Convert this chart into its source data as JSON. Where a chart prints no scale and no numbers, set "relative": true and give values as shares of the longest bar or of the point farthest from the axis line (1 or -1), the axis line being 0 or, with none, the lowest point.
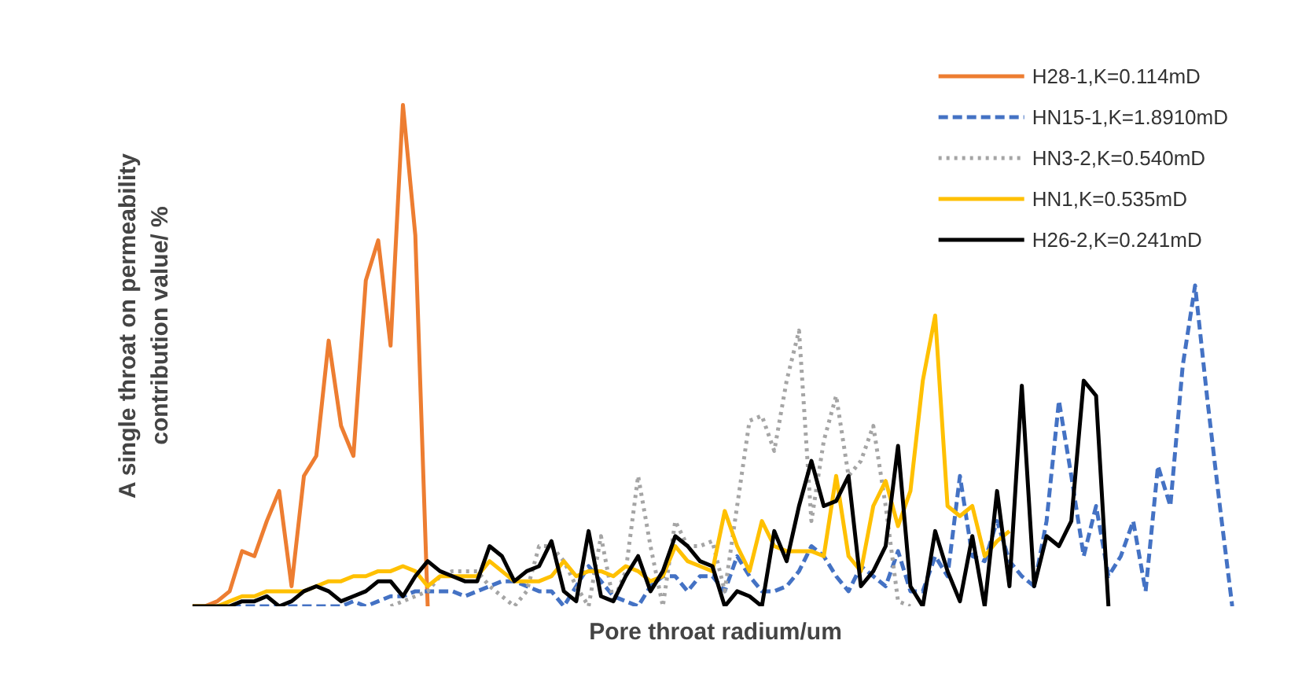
{
  "chart_data": {
    "type": "line",
    "relative": true,
    "xlabel": "Pore throat radium/um",
    "ylabel": "A single throat on permeability\ncontribution value/ %",
    "legend": "top right",
    "grid": false,
    "categories": [
      null,
      null,
      null,
      null,
      null,
      null,
      null,
      null,
      null,
      null,
      null,
      null,
      null,
      null,
      null,
      null,
      null,
      null,
      null,
      null,
      null,
      null,
      null,
      null,
      null,
      null,
      null,
      null,
      null,
      null,
      null,
      null,
      null,
      null,
      null,
      null,
      null,
      null,
      null,
      null,
      null,
      null,
      null,
      null,
      null,
      null,
      null,
      null,
      null,
      null,
      null,
      null,
      null,
      null,
      null,
      null,
      null,
      null,
      null,
      null,
      null,
      null,
      null,
      null,
      null,
      null,
      null,
      null,
      null,
      null,
      null,
      null,
      null,
      null,
      null,
      null,
      null,
      null,
      null,
      null,
      null,
      null,
      null,
      null,
      null
    ],
    "series": [
      {
        "name": "H28-1,K=0.114mD",
        "color": "#ed7d31",
        "line_style": "solid",
        "values": [
          0,
          0,
          0.01,
          0.03,
          0.11,
          0.1,
          0.17,
          0.23,
          0.04,
          0.26,
          0.3,
          0.53,
          0.36,
          0.3,
          0.65,
          0.73,
          0.52,
          1.0,
          0.74,
          0,
          null,
          null,
          null,
          null,
          null,
          null,
          null,
          null,
          null,
          null,
          null,
          null,
          null,
          null,
          null,
          null,
          null,
          null,
          null,
          null,
          null,
          null,
          null,
          null,
          null,
          null,
          null,
          null,
          null,
          null,
          null,
          null,
          null,
          null,
          null,
          null,
          null,
          null,
          null,
          null,
          null,
          null,
          null,
          null,
          null,
          null,
          null,
          null,
          null,
          null,
          null,
          null,
          null,
          null,
          null,
          null,
          null,
          null,
          null,
          null,
          null,
          null,
          null,
          null,
          null
        ]
      },
      {
        "name": "HN15-1,K=1.8910mD",
        "color": "#4472c4",
        "line_style": "dashed",
        "values": [
          null,
          null,
          0,
          0,
          0,
          0,
          0,
          0,
          0,
          0,
          0,
          0,
          0,
          0.01,
          0.0,
          0.01,
          0.02,
          0.02,
          0.03,
          0.03,
          0.03,
          0.03,
          0.02,
          0.03,
          0.04,
          0.05,
          0.05,
          0.04,
          0.03,
          0.03,
          0.0,
          0.04,
          0.08,
          0.05,
          0.02,
          0.01,
          0.0,
          0.04,
          0.06,
          0.06,
          0.03,
          0.06,
          0.06,
          0.03,
          0.1,
          0.06,
          0.03,
          0.03,
          0.04,
          0.07,
          0.12,
          0.1,
          0.06,
          0.03,
          0.08,
          0.06,
          0.04,
          0.11,
          0.03,
          0.03,
          0.1,
          0.06,
          0.26,
          0.1,
          0.09,
          0.17,
          0.09,
          0.06,
          0.04,
          0.17,
          0.41,
          0.26,
          0.1,
          0.2,
          0.06,
          0.1,
          0.17,
          0.03,
          0.28,
          0.2,
          0.48,
          0.64,
          0.41,
          0.2,
          0
        ]
      },
      {
        "name": "HN3-2,K=0.540mD",
        "color": "#a5a5a5",
        "line_style": "dotted",
        "values": [
          null,
          null,
          null,
          null,
          null,
          null,
          null,
          null,
          null,
          null,
          null,
          null,
          null,
          null,
          null,
          null,
          0.0,
          0.01,
          0.02,
          0.03,
          0.06,
          0.07,
          0.07,
          0.07,
          0.04,
          0.02,
          0,
          0.03,
          0.12,
          0.12,
          0.09,
          0.04,
          0.0,
          0.14,
          0.01,
          0.07,
          0.26,
          0.12,
          0.0,
          0.17,
          0.12,
          0.12,
          0.13,
          0.03,
          0.2,
          0.37,
          0.38,
          0.31,
          0.45,
          0.55,
          0.17,
          0.33,
          0.42,
          0.26,
          0.29,
          0.36,
          0.2,
          0.01,
          0,
          null,
          null,
          null,
          null,
          null,
          null,
          null,
          null,
          null,
          null,
          null,
          null,
          null,
          null,
          null,
          null,
          null,
          null,
          null,
          null,
          null,
          null,
          null,
          null,
          null,
          null
        ]
      },
      {
        "name": "HN1,K=0.535mD",
        "color": "#ffc000",
        "line_style": "solid",
        "values": [
          0,
          0,
          0.0,
          0.01,
          0.02,
          0.02,
          0.03,
          0.03,
          0.03,
          0.03,
          0.04,
          0.05,
          0.05,
          0.06,
          0.06,
          0.07,
          0.07,
          0.08,
          0.07,
          0.04,
          0.06,
          0.06,
          0.06,
          0.06,
          0.09,
          0.07,
          0.05,
          0.05,
          0.05,
          0.06,
          0.09,
          0.06,
          0.07,
          0.07,
          0.06,
          0.08,
          0.07,
          0.05,
          0.06,
          0.12,
          0.09,
          0.08,
          0.07,
          0.19,
          0.12,
          0.07,
          0.17,
          0.12,
          0.11,
          0.11,
          0.11,
          0.1,
          0.26,
          0.1,
          0.07,
          0.2,
          0.25,
          0.16,
          0.23,
          0.45,
          0.58,
          0.2,
          0.18,
          0.2,
          0.1,
          0.13,
          0.15,
          null,
          null,
          null,
          null,
          null,
          null,
          null,
          null,
          null,
          null,
          null,
          null,
          null,
          null,
          null,
          null,
          null,
          null
        ]
      },
      {
        "name": "H26-2,K=0.241mD",
        "color": "#000000",
        "line_style": "solid",
        "values": [
          0,
          0,
          0,
          0.0,
          0.01,
          0.01,
          0.02,
          0.0,
          0.01,
          0.03,
          0.04,
          0.03,
          0.01,
          0.02,
          0.03,
          0.05,
          0.05,
          0.02,
          0.06,
          0.09,
          0.07,
          0.06,
          0.05,
          0.05,
          0.12,
          0.1,
          0.05,
          0.07,
          0.08,
          0.13,
          0.03,
          0.01,
          0.15,
          0.02,
          0.01,
          0.06,
          0.1,
          0.03,
          0.07,
          0.14,
          0.12,
          0.09,
          0.08,
          0.0,
          0.03,
          0.02,
          0,
          0.15,
          0.09,
          0.2,
          0.29,
          0.2,
          0.21,
          0.26,
          0.04,
          0.07,
          0.12,
          0.32,
          0.04,
          0,
          0.15,
          0.07,
          0.01,
          0.14,
          0,
          0.23,
          0.04,
          0.44,
          0.04,
          0.14,
          0.12,
          0.17,
          0.45,
          0.42,
          0,
          null,
          null,
          null,
          null,
          null,
          null,
          null,
          null,
          null,
          null
        ]
      }
    ]
  }
}
